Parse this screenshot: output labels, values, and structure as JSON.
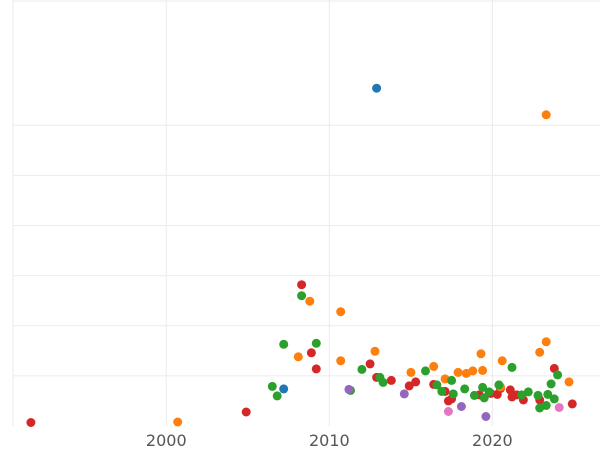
{
  "chart_data": {
    "type": "scatter",
    "title": "",
    "xlabel": "",
    "ylabel": "",
    "xlim": [
      1990.6,
      2026.6
    ],
    "ylim": [
      0,
      8.5
    ],
    "x_ticks": [
      2000,
      2010,
      2020
    ],
    "x_tick_labels": [
      "2000",
      "2010",
      "2020"
    ],
    "y_gridlines": [
      1,
      2,
      3,
      4,
      5,
      6
    ],
    "grid": true,
    "legend": "none",
    "series": [
      {
        "color": "#d62728",
        "points": [
          [
            1991.7,
            0.07
          ],
          [
            2004.9,
            0.28
          ],
          [
            2008.3,
            2.82
          ],
          [
            2008.9,
            1.46
          ],
          [
            2009.2,
            1.14
          ],
          [
            2012.5,
            1.24
          ],
          [
            2012.9,
            0.97
          ],
          [
            2013.8,
            0.91
          ],
          [
            2014.9,
            0.8
          ],
          [
            2015.3,
            0.88
          ],
          [
            2016.4,
            0.83
          ],
          [
            2017.1,
            0.69
          ],
          [
            2017.3,
            0.5
          ],
          [
            2017.5,
            0.54
          ],
          [
            2019.2,
            0.62
          ],
          [
            2019.9,
            0.65
          ],
          [
            2020.3,
            0.63
          ],
          [
            2020.5,
            0.75
          ],
          [
            2021.1,
            0.72
          ],
          [
            2021.2,
            0.58
          ],
          [
            2021.5,
            0.62
          ],
          [
            2021.9,
            0.52
          ],
          [
            2022.9,
            0.52
          ],
          [
            2023.8,
            1.15
          ],
          [
            2024.9,
            0.44
          ]
        ]
      },
      {
        "color": "#ff7f0e",
        "points": [
          [
            2000.7,
            0.08
          ],
          [
            2008.1,
            1.38
          ],
          [
            2008.8,
            2.49
          ],
          [
            2010.7,
            2.28
          ],
          [
            2010.7,
            1.3
          ],
          [
            2012.8,
            1.49
          ],
          [
            2015.0,
            1.07
          ],
          [
            2016.4,
            1.19
          ],
          [
            2017.1,
            0.94
          ],
          [
            2017.9,
            1.07
          ],
          [
            2018.4,
            1.05
          ],
          [
            2018.8,
            1.1
          ],
          [
            2019.3,
            1.44
          ],
          [
            2019.4,
            1.11
          ],
          [
            2020.5,
            0.78
          ],
          [
            2020.6,
            1.3
          ],
          [
            2022.9,
            1.47
          ],
          [
            2023.3,
            6.21
          ],
          [
            2023.3,
            1.68
          ],
          [
            2024.7,
            0.88
          ]
        ]
      },
      {
        "color": "#2ca02c",
        "points": [
          [
            2006.5,
            0.79
          ],
          [
            2006.8,
            0.6
          ],
          [
            2007.2,
            1.63
          ],
          [
            2008.3,
            2.6
          ],
          [
            2009.2,
            1.65
          ],
          [
            2011.3,
            0.71
          ],
          [
            2012.0,
            1.13
          ],
          [
            2013.1,
            0.97
          ],
          [
            2013.3,
            0.87
          ],
          [
            2015.9,
            1.1
          ],
          [
            2016.6,
            0.82
          ],
          [
            2016.9,
            0.69
          ],
          [
            2017.5,
            0.91
          ],
          [
            2017.6,
            0.64
          ],
          [
            2018.3,
            0.74
          ],
          [
            2018.9,
            0.61
          ],
          [
            2019.4,
            0.77
          ],
          [
            2019.5,
            0.56
          ],
          [
            2019.8,
            0.68
          ],
          [
            2020.4,
            0.82
          ],
          [
            2021.2,
            1.17
          ],
          [
            2021.8,
            0.62
          ],
          [
            2022.2,
            0.68
          ],
          [
            2022.8,
            0.61
          ],
          [
            2022.9,
            0.36
          ],
          [
            2023.3,
            0.41
          ],
          [
            2023.4,
            0.63
          ],
          [
            2023.6,
            0.84
          ],
          [
            2023.8,
            0.54
          ],
          [
            2024.0,
            1.02
          ]
        ]
      },
      {
        "color": "#1f77b4",
        "points": [
          [
            2012.9,
            6.74
          ],
          [
            2007.2,
            0.74
          ]
        ]
      },
      {
        "color": "#9467bd",
        "points": [
          [
            2011.2,
            0.73
          ],
          [
            2014.6,
            0.64
          ],
          [
            2018.1,
            0.39
          ],
          [
            2019.6,
            0.19
          ]
        ]
      },
      {
        "color": "#e377c2",
        "points": [
          [
            2017.3,
            0.29
          ],
          [
            2024.1,
            0.37
          ]
        ]
      }
    ]
  }
}
